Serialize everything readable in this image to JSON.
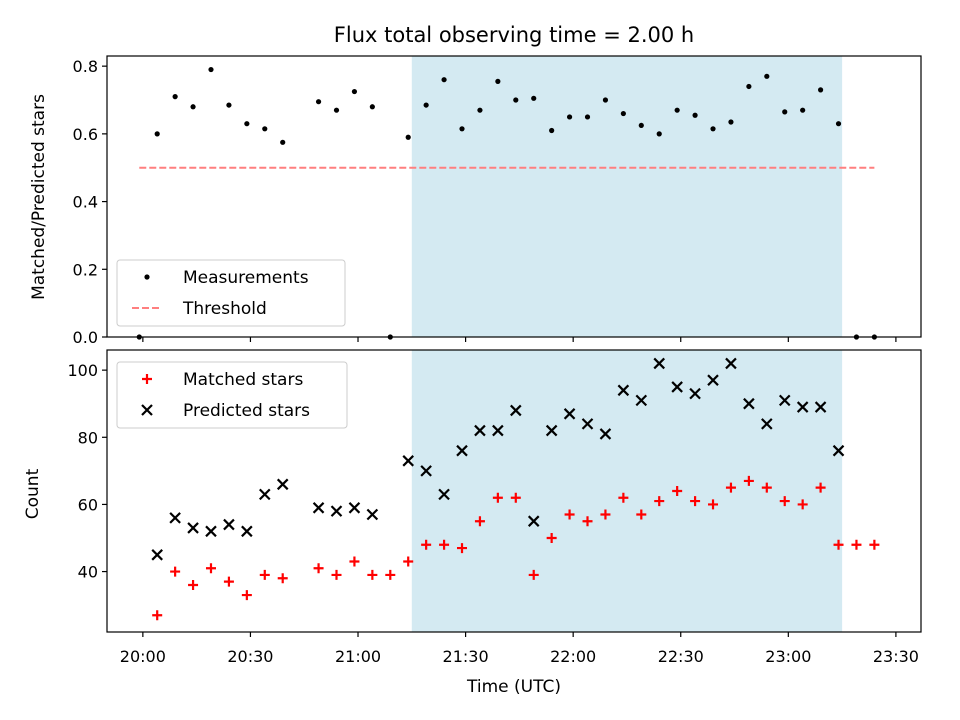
{
  "chart_data": [
    {
      "type": "scatter",
      "title": "Flux total observing time = 2.00 h",
      "xlabel": "",
      "ylabel": "Matched/Predicted stars",
      "xlim": [
        "19:50",
        "23:37"
      ],
      "ylim": [
        0.0,
        0.83
      ],
      "x_ticks": [
        "20:00",
        "20:30",
        "21:00",
        "21:30",
        "22:00",
        "22:30",
        "23:00",
        "23:30"
      ],
      "y_ticks": [
        "0.0",
        "0.2",
        "0.4",
        "0.6",
        "0.8"
      ],
      "shaded_interval": [
        "21:15",
        "23:15"
      ],
      "shaded_color": "#add8e6",
      "legend_position": "lower left",
      "series": [
        {
          "name": "Measurements",
          "marker": "dot",
          "color": "#000000",
          "x": [
            "19:59",
            "20:04",
            "20:09",
            "20:14",
            "20:19",
            "20:24",
            "20:29",
            "20:34",
            "20:39",
            "20:49",
            "20:54",
            "20:59",
            "21:04",
            "21:09",
            "21:14",
            "21:19",
            "21:24",
            "21:29",
            "21:34",
            "21:39",
            "21:44",
            "21:49",
            "21:54",
            "21:59",
            "22:04",
            "22:09",
            "22:14",
            "22:19",
            "22:24",
            "22:29",
            "22:34",
            "22:39",
            "22:44",
            "22:49",
            "22:54",
            "22:59",
            "23:04",
            "23:09",
            "23:14",
            "23:19",
            "23:24"
          ],
          "y": [
            0.0,
            0.6,
            0.71,
            0.68,
            0.79,
            0.685,
            0.63,
            0.615,
            0.575,
            0.695,
            0.67,
            0.725,
            0.68,
            0.0,
            0.59,
            0.685,
            0.76,
            0.615,
            0.67,
            0.755,
            0.7,
            0.705,
            0.61,
            0.65,
            0.65,
            0.7,
            0.66,
            0.625,
            0.6,
            0.67,
            0.655,
            0.615,
            0.635,
            0.74,
            0.77,
            0.665,
            0.67,
            0.73,
            0.63,
            0.0,
            0.0
          ]
        },
        {
          "name": "Threshold",
          "marker": "dashed-line",
          "color": "#ff7f7f",
          "x": [
            "19:59",
            "23:24"
          ],
          "y": [
            0.5,
            0.5
          ]
        }
      ]
    },
    {
      "type": "scatter",
      "title": "",
      "xlabel": "Time (UTC)",
      "ylabel": "Count",
      "xlim": [
        "19:50",
        "23:37"
      ],
      "ylim": [
        22,
        106
      ],
      "x_ticks": [
        "20:00",
        "20:30",
        "21:00",
        "21:30",
        "22:00",
        "22:30",
        "23:00",
        "23:30"
      ],
      "y_ticks": [
        "40",
        "60",
        "80",
        "100"
      ],
      "shaded_interval": [
        "21:15",
        "23:15"
      ],
      "shaded_color": "#add8e6",
      "legend_position": "upper left",
      "series": [
        {
          "name": "Matched stars",
          "marker": "plus",
          "color": "#ff0000",
          "x": [
            "20:04",
            "20:09",
            "20:14",
            "20:19",
            "20:24",
            "20:29",
            "20:34",
            "20:39",
            "20:49",
            "20:54",
            "20:59",
            "21:04",
            "21:09",
            "21:14",
            "21:19",
            "21:24",
            "21:29",
            "21:34",
            "21:39",
            "21:44",
            "21:49",
            "21:54",
            "21:59",
            "22:04",
            "22:09",
            "22:14",
            "22:19",
            "22:24",
            "22:29",
            "22:34",
            "22:39",
            "22:44",
            "22:49",
            "22:54",
            "22:59",
            "23:04",
            "23:09",
            "23:14",
            "23:19",
            "23:24"
          ],
          "y": [
            27,
            40,
            36,
            41,
            37,
            33,
            39,
            38,
            41,
            39,
            43,
            39,
            39,
            43,
            48,
            48,
            47,
            55,
            62,
            62,
            39,
            50,
            57,
            55,
            57,
            62,
            57,
            61,
            64,
            61,
            60,
            65,
            67,
            65,
            61,
            60,
            65,
            48,
            48,
            48
          ]
        },
        {
          "name": "Predicted stars",
          "marker": "x",
          "color": "#000000",
          "x": [
            "20:04",
            "20:09",
            "20:14",
            "20:19",
            "20:24",
            "20:29",
            "20:34",
            "20:39",
            "20:49",
            "20:54",
            "20:59",
            "21:04",
            "21:14",
            "21:19",
            "21:24",
            "21:29",
            "21:34",
            "21:39",
            "21:44",
            "21:49",
            "21:54",
            "21:59",
            "22:04",
            "22:09",
            "22:14",
            "22:19",
            "22:24",
            "22:29",
            "22:34",
            "22:39",
            "22:44",
            "22:49",
            "22:54",
            "22:59",
            "23:04",
            "23:09",
            "23:14"
          ],
          "y": [
            45,
            56,
            53,
            52,
            54,
            52,
            63,
            66,
            59,
            58,
            59,
            57,
            73,
            70,
            63,
            76,
            82,
            82,
            88,
            55,
            82,
            87,
            84,
            81,
            94,
            91,
            102,
            95,
            93,
            97,
            102,
            90,
            84,
            91,
            89,
            89,
            76
          ]
        }
      ]
    }
  ]
}
